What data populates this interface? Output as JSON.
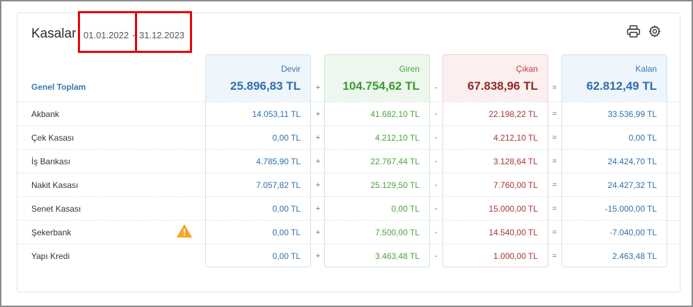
{
  "header": {
    "title": "Kasalar",
    "date_start": "01.01.2022",
    "date_separator": "-",
    "date_end": "31.12.2023",
    "print_icon": "printer-icon",
    "settings_icon": "gear-icon"
  },
  "columns": {
    "devir": {
      "label": "Devir",
      "total": "25.896,83 TL"
    },
    "giren": {
      "label": "Giren",
      "total": "104.754,62 TL"
    },
    "cikan": {
      "label": "Çıkan",
      "total": "67.838,96 TL"
    },
    "kalan": {
      "label": "Kalan",
      "total": "62.812,49 TL"
    }
  },
  "operators": {
    "plus": "+",
    "minus": "-",
    "equals": "="
  },
  "summary_label": "Genel Toplam",
  "rows": [
    {
      "name": "Akbank",
      "devir": "14.053,11 TL",
      "giren": "41.682,10 TL",
      "cikan": "22.198,22 TL",
      "kalan": "33.536,99 TL"
    },
    {
      "name": "Çek Kasası",
      "devir": "0,00 TL",
      "giren": "4.212,10 TL",
      "cikan": "4.212,10 TL",
      "kalan": "0,00 TL"
    },
    {
      "name": "İş Bankası",
      "devir": "4.785,90 TL",
      "giren": "22.767,44 TL",
      "cikan": "3.128,64 TL",
      "kalan": "24.424,70 TL"
    },
    {
      "name": "Nakit Kasası",
      "devir": "7.057,82 TL",
      "giren": "25.129,50 TL",
      "cikan": "7.760,00 TL",
      "kalan": "24.427,32 TL"
    },
    {
      "name": "Senet Kasası",
      "devir": "0,00 TL",
      "giren": "0,00 TL",
      "cikan": "15.000,00 TL",
      "kalan": "-15.000,00 TL"
    },
    {
      "name": "Şekerbank",
      "devir": "0,00 TL",
      "giren": "7.500,00 TL",
      "cikan": "14.540,00 TL",
      "kalan": "-7.040,00 TL",
      "warning_icon": "warning-icon"
    },
    {
      "name": "Yapı Kredi",
      "devir": "0,00 TL",
      "giren": "3.463,48 TL",
      "cikan": "1.000,00 TL",
      "kalan": "2.463,48 TL"
    }
  ],
  "colors": {
    "blue": "#2f6fa8",
    "green": "#49a43a",
    "red": "#a8322f",
    "highlight": "#e8000b",
    "warning": "#f5a623"
  }
}
